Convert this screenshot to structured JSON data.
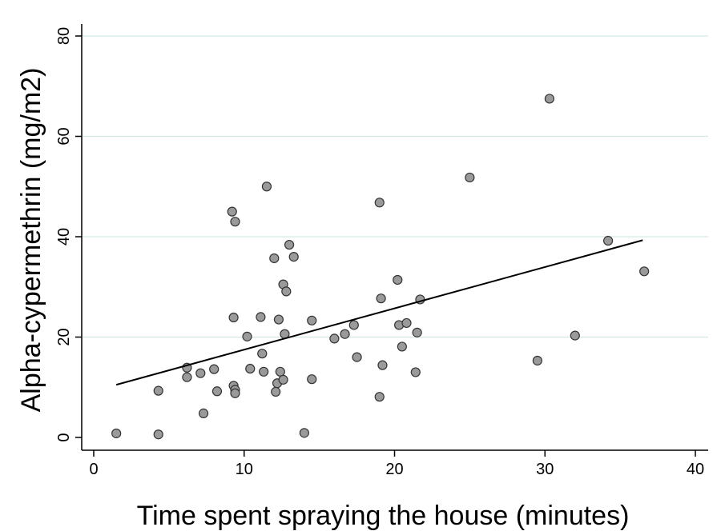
{
  "chart_data": {
    "type": "scatter",
    "title": "",
    "xlabel": "Time spent spraying the house (minutes)",
    "ylabel": "Alpha-cypermethrin (mg/m2)",
    "xlim": [
      0,
      40
    ],
    "ylim": [
      0,
      80
    ],
    "xticks": [
      "0",
      "10",
      "20",
      "30",
      "40"
    ],
    "yticks": [
      "0",
      "20",
      "40",
      "60",
      "80"
    ],
    "grid": "horizontal",
    "legend": "none",
    "marker_fill": "#9a9a9a",
    "marker_stroke": "#333333",
    "grid_color": "#d5e6e6",
    "fit_line": {
      "x": [
        1.5,
        36.5
      ],
      "y": [
        10.5,
        39.3
      ]
    },
    "points": [
      {
        "x": 1.5,
        "y": 0.8
      },
      {
        "x": 4.3,
        "y": 9.3
      },
      {
        "x": 4.3,
        "y": 0.6
      },
      {
        "x": 6.2,
        "y": 13.9
      },
      {
        "x": 6.2,
        "y": 12.0
      },
      {
        "x": 7.1,
        "y": 12.8
      },
      {
        "x": 7.3,
        "y": 4.8
      },
      {
        "x": 8.0,
        "y": 13.6
      },
      {
        "x": 8.2,
        "y": 9.2
      },
      {
        "x": 9.2,
        "y": 45.0
      },
      {
        "x": 9.4,
        "y": 43.0
      },
      {
        "x": 9.3,
        "y": 23.9
      },
      {
        "x": 9.3,
        "y": 10.3
      },
      {
        "x": 9.4,
        "y": 9.5
      },
      {
        "x": 9.4,
        "y": 8.8
      },
      {
        "x": 10.2,
        "y": 20.1
      },
      {
        "x": 10.4,
        "y": 13.7
      },
      {
        "x": 11.1,
        "y": 24.0
      },
      {
        "x": 11.2,
        "y": 16.7
      },
      {
        "x": 11.3,
        "y": 13.1
      },
      {
        "x": 11.5,
        "y": 50.0
      },
      {
        "x": 12.0,
        "y": 35.7
      },
      {
        "x": 12.1,
        "y": 9.1
      },
      {
        "x": 12.2,
        "y": 10.8
      },
      {
        "x": 12.3,
        "y": 23.5
      },
      {
        "x": 12.4,
        "y": 13.1
      },
      {
        "x": 12.6,
        "y": 30.5
      },
      {
        "x": 12.6,
        "y": 11.5
      },
      {
        "x": 12.7,
        "y": 20.6
      },
      {
        "x": 12.8,
        "y": 29.1
      },
      {
        "x": 13.0,
        "y": 38.4
      },
      {
        "x": 13.3,
        "y": 36.0
      },
      {
        "x": 14.0,
        "y": 0.9
      },
      {
        "x": 14.5,
        "y": 23.3
      },
      {
        "x": 14.5,
        "y": 11.6
      },
      {
        "x": 16.0,
        "y": 19.7
      },
      {
        "x": 16.7,
        "y": 20.6
      },
      {
        "x": 17.3,
        "y": 22.4
      },
      {
        "x": 17.5,
        "y": 16.0
      },
      {
        "x": 19.0,
        "y": 46.8
      },
      {
        "x": 19.0,
        "y": 8.1
      },
      {
        "x": 19.1,
        "y": 27.7
      },
      {
        "x": 19.2,
        "y": 14.4
      },
      {
        "x": 20.2,
        "y": 31.4
      },
      {
        "x": 20.3,
        "y": 22.4
      },
      {
        "x": 20.5,
        "y": 18.1
      },
      {
        "x": 20.8,
        "y": 22.8
      },
      {
        "x": 21.4,
        "y": 13.0
      },
      {
        "x": 21.5,
        "y": 20.9
      },
      {
        "x": 21.7,
        "y": 27.5
      },
      {
        "x": 25.0,
        "y": 51.8
      },
      {
        "x": 29.5,
        "y": 15.3
      },
      {
        "x": 30.3,
        "y": 67.5
      },
      {
        "x": 32.0,
        "y": 20.3
      },
      {
        "x": 34.2,
        "y": 39.2
      },
      {
        "x": 36.6,
        "y": 33.1
      }
    ]
  }
}
